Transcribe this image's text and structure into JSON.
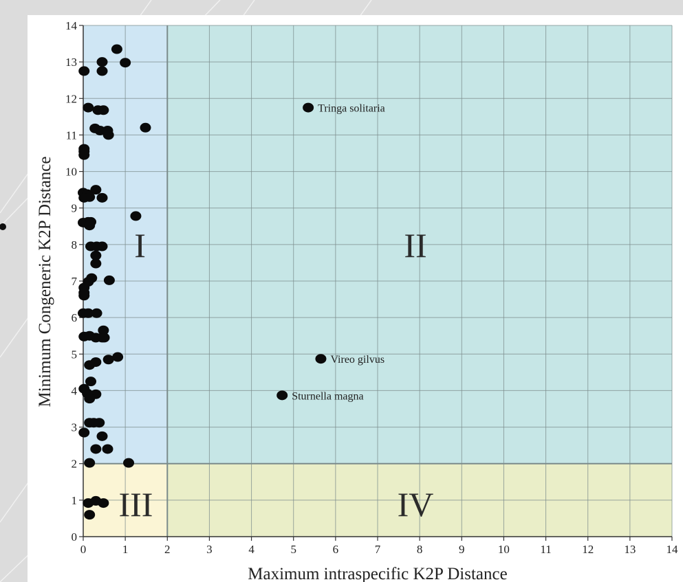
{
  "chart_data": {
    "type": "scatter",
    "title": "",
    "xlabel": "Maximum intraspecific K2P Distance",
    "ylabel": "Minimum Congeneric K2P Distance",
    "xlim": [
      0,
      14
    ],
    "ylim": [
      0,
      14
    ],
    "x_ticks": [
      0,
      1,
      2,
      3,
      4,
      5,
      6,
      7,
      8,
      9,
      10,
      11,
      12,
      13,
      14
    ],
    "y_ticks": [
      0,
      1,
      2,
      3,
      4,
      5,
      6,
      7,
      8,
      9,
      10,
      11,
      12,
      13,
      14
    ],
    "grid": true,
    "threshold_x": 2,
    "threshold_y": 2,
    "regions": [
      {
        "label": "I",
        "x": [
          0,
          2
        ],
        "y": [
          2,
          14
        ],
        "color": "#cfe6f4",
        "label_at": [
          1.35,
          8
        ]
      },
      {
        "label": "II",
        "x": [
          2,
          14
        ],
        "y": [
          2,
          14
        ],
        "color": "#c6e6e6",
        "label_at": [
          7.9,
          8
        ]
      },
      {
        "label": "III",
        "x": [
          0,
          2
        ],
        "y": [
          0,
          2
        ],
        "color": "#fbf5d5",
        "label_at": [
          1.25,
          0.9
        ]
      },
      {
        "label": "IV",
        "x": [
          2,
          14
        ],
        "y": [
          0,
          2
        ],
        "color": "#eaeec8",
        "label_at": [
          7.9,
          0.9
        ]
      }
    ],
    "annotations": [
      {
        "text": "Tringa solitaria",
        "x": 5.35,
        "y": 11.75
      },
      {
        "text": "Vireo gilvus",
        "x": 5.65,
        "y": 4.87
      },
      {
        "text": "Sturnella magna",
        "x": 4.73,
        "y": 3.87
      }
    ],
    "points": [
      {
        "x": 0.8,
        "y": 13.35
      },
      {
        "x": 0.45,
        "y": 13.0
      },
      {
        "x": 1.0,
        "y": 12.98
      },
      {
        "x": 0.02,
        "y": 12.75
      },
      {
        "x": 0.45,
        "y": 12.75
      },
      {
        "x": 0.12,
        "y": 11.75
      },
      {
        "x": 0.35,
        "y": 11.68
      },
      {
        "x": 0.48,
        "y": 11.68
      },
      {
        "x": 1.48,
        "y": 11.2
      },
      {
        "x": 0.28,
        "y": 11.18
      },
      {
        "x": 0.4,
        "y": 11.12
      },
      {
        "x": 0.58,
        "y": 11.12
      },
      {
        "x": 0.6,
        "y": 11.0
      },
      {
        "x": 0.02,
        "y": 10.62
      },
      {
        "x": 0.02,
        "y": 10.55
      },
      {
        "x": 0.02,
        "y": 10.45
      },
      {
        "x": 0.3,
        "y": 9.5
      },
      {
        "x": 0.0,
        "y": 9.42
      },
      {
        "x": 0.1,
        "y": 9.38
      },
      {
        "x": 0.02,
        "y": 9.28
      },
      {
        "x": 0.15,
        "y": 9.3
      },
      {
        "x": 0.45,
        "y": 9.28
      },
      {
        "x": 1.25,
        "y": 8.78
      },
      {
        "x": 0.0,
        "y": 8.6
      },
      {
        "x": 0.12,
        "y": 8.62
      },
      {
        "x": 0.18,
        "y": 8.62
      },
      {
        "x": 0.15,
        "y": 8.52
      },
      {
        "x": 0.18,
        "y": 7.95
      },
      {
        "x": 0.32,
        "y": 7.95
      },
      {
        "x": 0.45,
        "y": 7.95
      },
      {
        "x": 0.3,
        "y": 7.7
      },
      {
        "x": 0.3,
        "y": 7.48
      },
      {
        "x": 0.2,
        "y": 7.08
      },
      {
        "x": 0.62,
        "y": 7.02
      },
      {
        "x": 0.12,
        "y": 6.98
      },
      {
        "x": 0.02,
        "y": 6.82
      },
      {
        "x": 0.02,
        "y": 6.68
      },
      {
        "x": 0.02,
        "y": 6.6
      },
      {
        "x": 0.0,
        "y": 6.12
      },
      {
        "x": 0.12,
        "y": 6.12
      },
      {
        "x": 0.32,
        "y": 6.12
      },
      {
        "x": 0.48,
        "y": 5.65
      },
      {
        "x": 0.02,
        "y": 5.48
      },
      {
        "x": 0.15,
        "y": 5.5
      },
      {
        "x": 0.3,
        "y": 5.45
      },
      {
        "x": 0.45,
        "y": 5.45
      },
      {
        "x": 0.5,
        "y": 5.45
      },
      {
        "x": 0.82,
        "y": 4.92
      },
      {
        "x": 0.6,
        "y": 4.85
      },
      {
        "x": 0.3,
        "y": 4.78
      },
      {
        "x": 0.15,
        "y": 4.7
      },
      {
        "x": 5.65,
        "y": 4.87
      },
      {
        "x": 5.35,
        "y": 11.75
      },
      {
        "x": 0.18,
        "y": 4.25
      },
      {
        "x": 0.02,
        "y": 4.05
      },
      {
        "x": 0.1,
        "y": 3.92
      },
      {
        "x": 0.3,
        "y": 3.9
      },
      {
        "x": 0.15,
        "y": 3.78
      },
      {
        "x": 4.73,
        "y": 3.87
      },
      {
        "x": 0.15,
        "y": 3.12
      },
      {
        "x": 0.38,
        "y": 3.12
      },
      {
        "x": 0.25,
        "y": 3.12
      },
      {
        "x": 0.02,
        "y": 2.85
      },
      {
        "x": 0.45,
        "y": 2.75
      },
      {
        "x": 0.3,
        "y": 2.4
      },
      {
        "x": 0.58,
        "y": 2.4
      },
      {
        "x": 0.15,
        "y": 2.02
      },
      {
        "x": 1.08,
        "y": 2.02
      },
      {
        "x": 0.3,
        "y": 0.98
      },
      {
        "x": 0.48,
        "y": 0.92
      },
      {
        "x": 0.12,
        "y": 0.92
      },
      {
        "x": 0.15,
        "y": 0.6
      }
    ]
  }
}
